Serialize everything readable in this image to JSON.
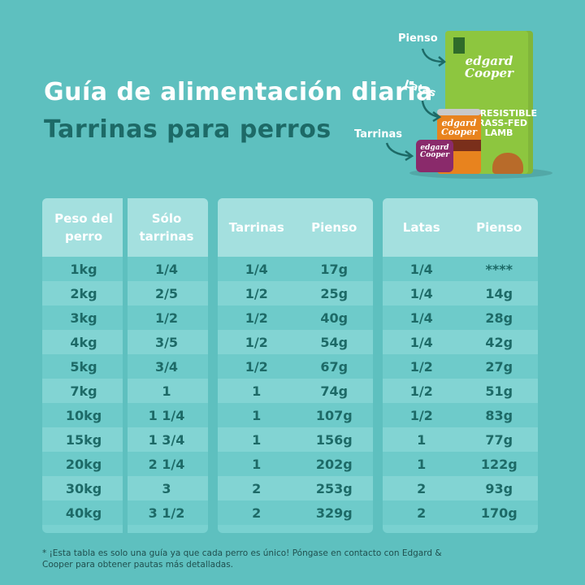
{
  "title": {
    "line1": "Guía de alimentación diaria",
    "line2": "Tarrinas para perros"
  },
  "illustration": {
    "callouts": [
      "Pienso",
      "Latas",
      "Tarrinas"
    ],
    "bag_brand": "edgard Cooper",
    "bag_label": "IRRESISTIBLE GRASS-FED LAMB",
    "can_brand": "edgard Cooper",
    "tray_brand": "edgard Cooper"
  },
  "tables": {
    "weights": {
      "headers": [
        "Peso del perro",
        "Sólo tarrinas"
      ],
      "rows": [
        [
          "1kg",
          "1/4"
        ],
        [
          "2kg",
          "2/5"
        ],
        [
          "3kg",
          "1/2"
        ],
        [
          "4kg",
          "3/5"
        ],
        [
          "5kg",
          "3/4"
        ],
        [
          "7kg",
          "1"
        ],
        [
          "10kg",
          "1 1/4"
        ],
        [
          "15kg",
          "1 3/4"
        ],
        [
          "20kg",
          "2 1/4"
        ],
        [
          "30kg",
          "3"
        ],
        [
          "40kg",
          "3 1/2"
        ]
      ]
    },
    "tarrinas_pienso": {
      "headers": [
        "Tarrinas",
        "Pienso"
      ],
      "rows": [
        [
          "1/4",
          "17g"
        ],
        [
          "1/2",
          "25g"
        ],
        [
          "1/2",
          "40g"
        ],
        [
          "1/2",
          "54g"
        ],
        [
          "1/2",
          "67g"
        ],
        [
          "1",
          "74g"
        ],
        [
          "1",
          "107g"
        ],
        [
          "1",
          "156g"
        ],
        [
          "1",
          "202g"
        ],
        [
          "2",
          "253g"
        ],
        [
          "2",
          "329g"
        ]
      ]
    },
    "latas_pienso": {
      "headers": [
        "Latas",
        "Pienso"
      ],
      "rows": [
        [
          "1/4",
          "****"
        ],
        [
          "1/4",
          "14g"
        ],
        [
          "1/4",
          "28g"
        ],
        [
          "1/4",
          "42g"
        ],
        [
          "1/2",
          "27g"
        ],
        [
          "1/2",
          "51g"
        ],
        [
          "1/2",
          "83g"
        ],
        [
          "1",
          "77g"
        ],
        [
          "1",
          "122g"
        ],
        [
          "2",
          "93g"
        ],
        [
          "2",
          "170g"
        ]
      ]
    }
  },
  "footnote": "* ¡Esta tabla es solo una guía ya que cada perro es único! Póngase en contacto con Edgard & Cooper para obtener pautas más detalladas.",
  "colors": {
    "background": "#5ec0bf",
    "panel": "#79d1d0",
    "header": "#a4e0df",
    "text_dark": "#1d6a67"
  }
}
